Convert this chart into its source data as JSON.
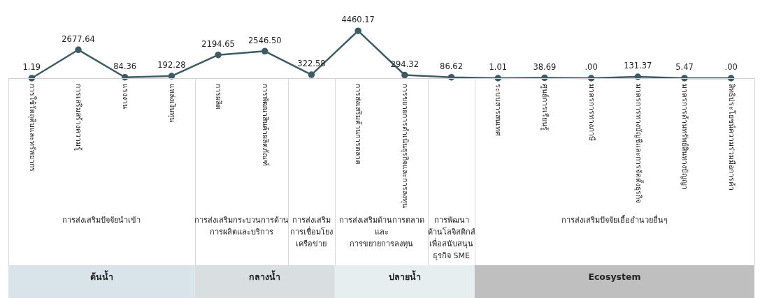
{
  "chart_data": {
    "type": "line",
    "categories": [
      "การใช้วัตถุดิบและทรัพยากร",
      "การเสริมสร้างความรู้",
      "แรงงาน",
      "แหล่งเงินทุน",
      "การผลิต",
      "การพัฒนาสินค้าผลิตภัณฑ์",
      null,
      "การส่งเสริมด้านการตลาด",
      "การขยายการดำเนินธุรกิจและการลงทุน",
      null,
      "ระบบสารสนเทศ",
      "ศูนย์การเรียนรู้",
      "มาตรการทางภาษี",
      "มาตรการทางบัญชีและการจัดตั้งธุรกิจ",
      "มาตรการด้านทรัพย์สินทางปัญญา",
      "สิทธิประโยชน์ความร่วมมือการค้า"
    ],
    "series": [
      {
        "color": "#3f5b63",
        "values": [
          1.19,
          2677.64,
          84.36,
          192.28,
          2194.65,
          2546.5,
          322.58,
          4460.17,
          294.32,
          86.62,
          1.01,
          38.69,
          0,
          131.37,
          5.47,
          0
        ],
        "value_labels": [
          "1.19",
          "2677.64",
          "84.36",
          "192.28",
          "2194.65",
          "2546.50",
          "322.58",
          "4460.17",
          "294.32",
          "86.62",
          "1.01",
          "38.69",
          ".00",
          "131.37",
          "5.47",
          ".00"
        ]
      }
    ],
    "marker": "circle",
    "line_style": "solid",
    "grid": false,
    "legend": false,
    "tick_labels": "x",
    "annotations": [
      "การส่งเสริมปัจจัยนำเข้า",
      "การส่งเสริมกระบวนการด้าน\nการผลิตและบริการ",
      "การส่งเสริม\nการเชื่อมโยง\nเครือข่าย",
      "การส่งเสริมด้านการตลาด\nและ\nการขยายการลงทุน",
      "การพัฒนา\nด้านโลจิสติกส์\nเพื่อสนับสนุน\nธุรกิจ SME",
      "การส่งเสริมปัจจัยเอื้ออำนวยอื่นๆ",
      "ต้นน้ำ",
      "กลางน้ำ",
      "ปลายน้ำ",
      "Ecosystem"
    ]
  }
}
